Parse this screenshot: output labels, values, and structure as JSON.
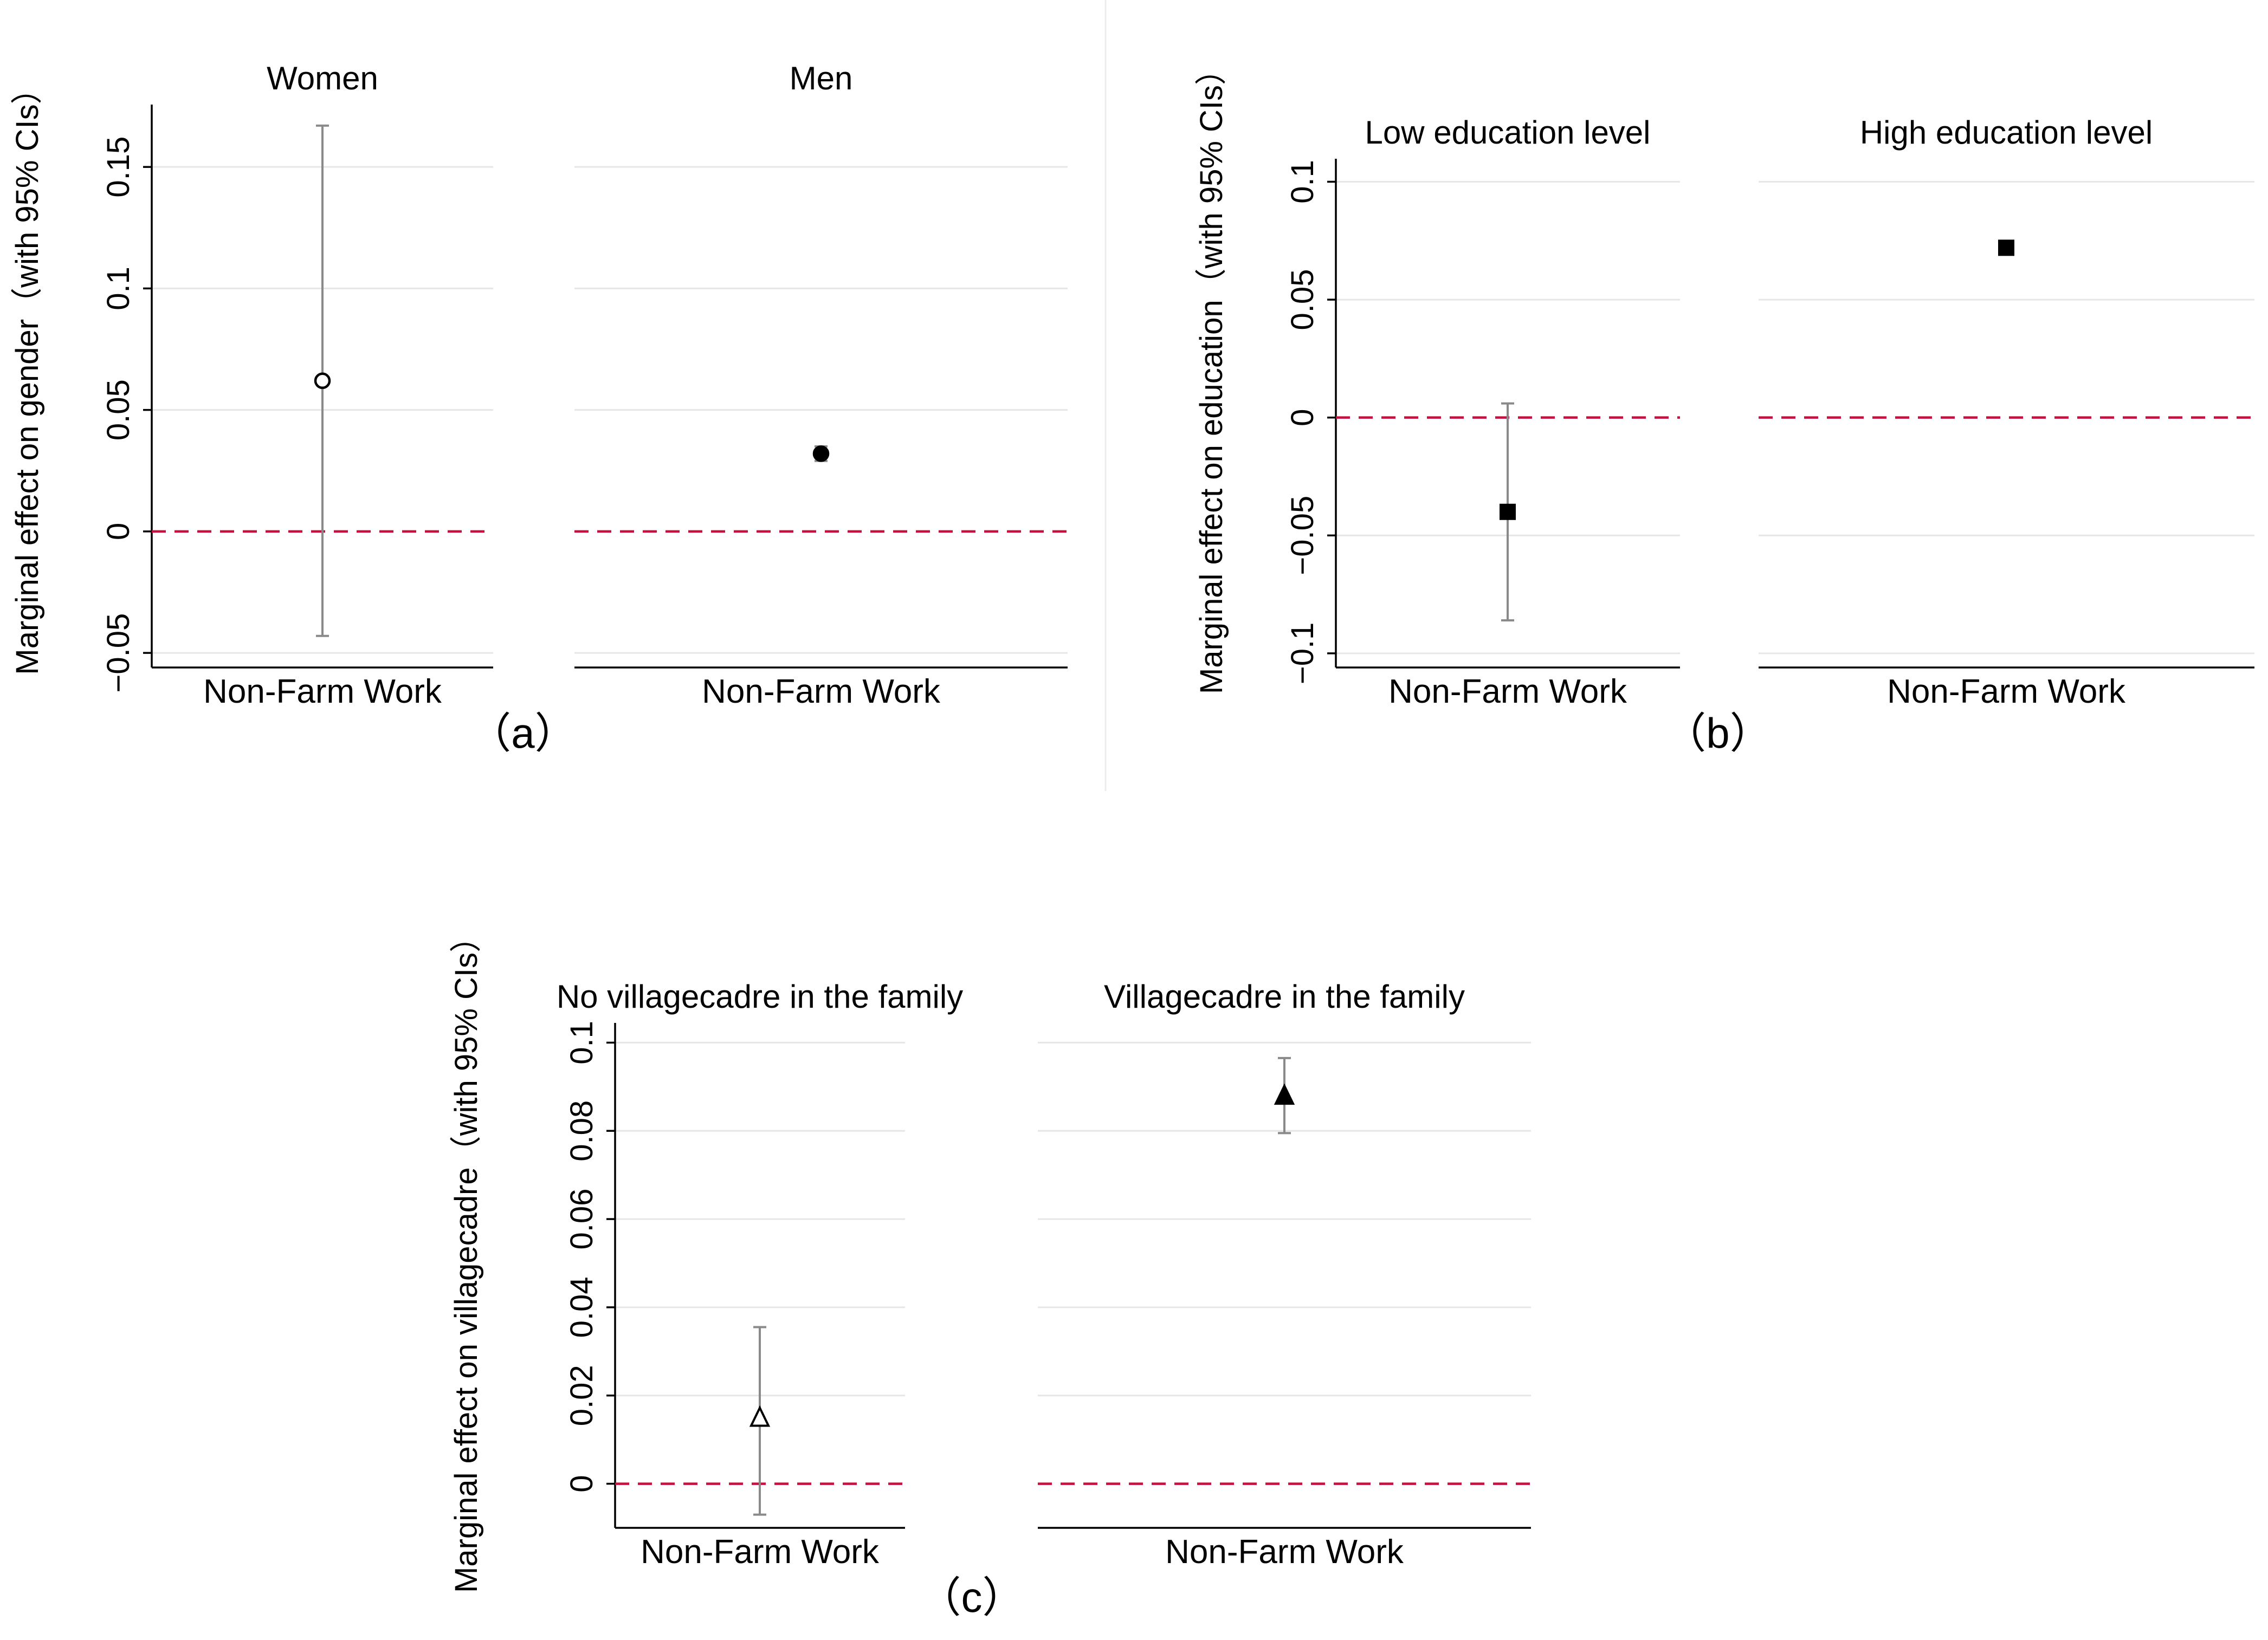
{
  "chart_data": [
    {
      "type": "scatter",
      "panel_label": "（a）",
      "ylabel": "Marginal effect on gender（with 95% CIs）",
      "ylim": [
        -0.056,
        0.173
      ],
      "yticks": [
        -0.05,
        0,
        0.05,
        0.1,
        0.15
      ],
      "ytick_labels": [
        "−0.05",
        "0",
        "0.05",
        "0.1",
        "0.15"
      ],
      "grid": true,
      "reference_line": 0,
      "reference_color": "#c8103e",
      "subplots": [
        {
          "title": "Women",
          "category": "Non-Farm Work",
          "estimate": 0.062,
          "ci_low": -0.043,
          "ci_high": 0.167,
          "marker": "circle-open"
        },
        {
          "title": "Men",
          "category": "Non-Farm Work",
          "estimate": 0.032,
          "ci_low": 0.029,
          "ci_high": 0.035,
          "marker": "circle-filled"
        }
      ]
    },
    {
      "type": "scatter",
      "panel_label": "（b）",
      "ylabel": "Marginal effect on education（with 95% CIs）",
      "ylim": [
        -0.106,
        0.107
      ],
      "yticks": [
        -0.1,
        -0.05,
        0,
        0.05,
        0.1
      ],
      "ytick_labels": [
        "−0.1",
        "−0.05",
        "0",
        "0.05",
        "0.1"
      ],
      "grid": true,
      "reference_line": 0,
      "reference_color": "#c8103e",
      "subplots": [
        {
          "title": "Low education level",
          "category": "Non-Farm Work",
          "estimate": -0.04,
          "ci_low": -0.086,
          "ci_high": 0.006,
          "marker": "square-filled"
        },
        {
          "title": "High education level",
          "category": "Non-Farm Work",
          "estimate": 0.072,
          "ci_low": 0.071,
          "ci_high": 0.073,
          "marker": "square-filled"
        }
      ]
    },
    {
      "type": "scatter",
      "panel_label": "（c）",
      "ylabel": "Marginal effect on villagecadre（with 95% CIs）",
      "ylim": [
        -0.01,
        0.103
      ],
      "yticks": [
        0,
        0.02,
        0.04,
        0.06,
        0.08,
        0.1
      ],
      "ytick_labels": [
        "0",
        "0.02",
        "0.04",
        "0.06",
        "0.08",
        "0.1"
      ],
      "grid": true,
      "reference_line": 0,
      "reference_color": "#c8103e",
      "subplots": [
        {
          "title": "No villagecadre in the family",
          "category": "Non-Farm Work",
          "estimate": 0.015,
          "ci_low": -0.007,
          "ci_high": 0.0355,
          "marker": "triangle-open"
        },
        {
          "title": "Villagecadre in the family",
          "category": "Non-Farm Work",
          "estimate": 0.088,
          "ci_low": 0.0795,
          "ci_high": 0.0965,
          "marker": "triangle-filled"
        }
      ]
    }
  ]
}
